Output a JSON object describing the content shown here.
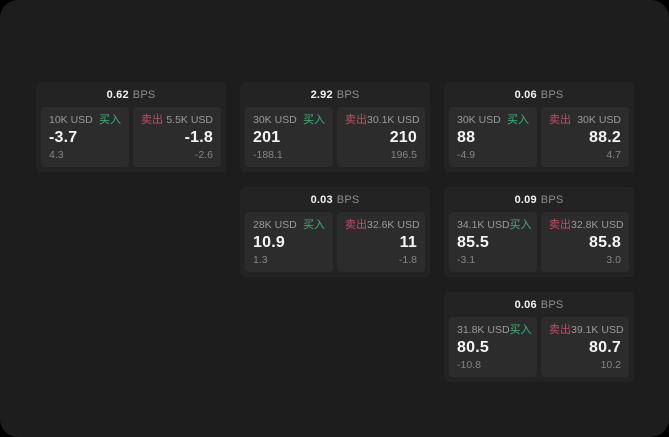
{
  "labels": {
    "buy": "买入",
    "sell": "卖出",
    "bps_unit": "BPS"
  },
  "colors": {
    "page_bg": "#1d1d1e",
    "card_bg": "#232324",
    "cell_bg": "#2c2c2d",
    "buy_green": "#3eb37a",
    "sell_red": "#c94a66",
    "value_white": "#f5f5f6",
    "muted_gray": "#9a9a9e"
  },
  "cards": [
    {
      "bps": "0.62",
      "buy": {
        "amount": "10K USD",
        "value": "-3.7",
        "sub": "4.3"
      },
      "sell": {
        "amount": "5.5K USD",
        "value": "-1.8",
        "sub": "-2.6"
      }
    },
    {
      "bps": "2.92",
      "buy": {
        "amount": "30K USD",
        "value": "201",
        "sub": "-188.1"
      },
      "sell": {
        "amount": "30.1K USD",
        "value": "210",
        "sub": "196.5"
      }
    },
    {
      "bps": "0.06",
      "buy": {
        "amount": "30K USD",
        "value": "88",
        "sub": "-4.9"
      },
      "sell": {
        "amount": "30K USD",
        "value": "88.2",
        "sub": "4.7"
      }
    },
    {
      "bps": "0.03",
      "buy": {
        "amount": "28K USD",
        "value": "10.9",
        "sub": "1.3"
      },
      "sell": {
        "amount": "32.6K USD",
        "value": "11",
        "sub": "-1.8"
      }
    },
    {
      "bps": "0.09",
      "buy": {
        "amount": "34.1K USD",
        "value": "85.5",
        "sub": "-3.1"
      },
      "sell": {
        "amount": "32.8K USD",
        "value": "85.8",
        "sub": "3.0"
      }
    },
    {
      "bps": "0.06",
      "buy": {
        "amount": "31.8K USD",
        "value": "80.5",
        "sub": "-10.8"
      },
      "sell": {
        "amount": "39.1K USD",
        "value": "80.7",
        "sub": "10.2"
      }
    }
  ]
}
